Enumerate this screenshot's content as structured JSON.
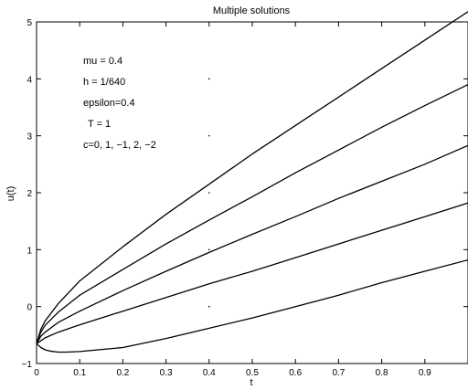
{
  "chart_data": {
    "type": "line",
    "title": "Multiple solutions",
    "xlabel": "t",
    "ylabel": "u(t)",
    "xlim": [
      0,
      1
    ],
    "ylim": [
      -1,
      5
    ],
    "xticks": [
      0,
      0.1,
      0.2,
      0.3,
      0.4,
      0.5,
      0.6,
      0.7,
      0.8,
      0.9
    ],
    "xtick_labels": [
      "0",
      "0.1",
      "0.2",
      "0.3",
      "0.4",
      "0.5",
      "0.6",
      "0.7",
      "0.8",
      "0.9"
    ],
    "yticks": [
      -1,
      0,
      1,
      2,
      3,
      4,
      5
    ],
    "ytick_labels": [
      "−1",
      "0",
      "1",
      "2",
      "3",
      "4",
      "5"
    ],
    "grid": false,
    "legend": "none",
    "line_color": "#000000",
    "annotations": [
      "mu = 0.4",
      "h = 1/640",
      "epsilon=0.4",
      "T = 1",
      "c=0, 1, −1, 2, −2"
    ],
    "marker_points": [
      {
        "x": 0.4,
        "y": 4.0
      },
      {
        "x": 0.4,
        "y": 3.0
      },
      {
        "x": 0.4,
        "y": 2.0
      },
      {
        "x": 0.4,
        "y": 1.0
      },
      {
        "x": 0.4,
        "y": 0.0
      }
    ],
    "series": [
      {
        "x": [
          0,
          0.01,
          0.02,
          0.05,
          0.1,
          0.2,
          0.3,
          0.4,
          0.5,
          0.6,
          0.7,
          0.8,
          0.9,
          1.0
        ],
        "y": [
          -0.65,
          -0.4,
          -0.25,
          0.05,
          0.45,
          1.05,
          1.62,
          2.15,
          2.68,
          3.18,
          3.68,
          4.18,
          4.68,
          5.18
        ]
      },
      {
        "x": [
          0,
          0.01,
          0.02,
          0.05,
          0.1,
          0.2,
          0.3,
          0.4,
          0.5,
          0.6,
          0.7,
          0.8,
          0.9,
          1.0
        ],
        "y": [
          -0.65,
          -0.45,
          -0.33,
          -0.1,
          0.2,
          0.65,
          1.1,
          1.52,
          1.93,
          2.35,
          2.75,
          3.15,
          3.53,
          3.9
        ]
      },
      {
        "x": [
          0,
          0.01,
          0.02,
          0.05,
          0.1,
          0.2,
          0.3,
          0.4,
          0.5,
          0.6,
          0.7,
          0.8,
          0.9,
          1.0
        ],
        "y": [
          -0.65,
          -0.52,
          -0.45,
          -0.28,
          -0.08,
          0.28,
          0.62,
          0.95,
          1.27,
          1.58,
          1.9,
          2.2,
          2.5,
          2.83
        ]
      },
      {
        "x": [
          0,
          0.01,
          0.02,
          0.05,
          0.1,
          0.2,
          0.3,
          0.4,
          0.5,
          0.6,
          0.7,
          0.8,
          0.9,
          1.0
        ],
        "y": [
          -0.65,
          -0.6,
          -0.55,
          -0.45,
          -0.32,
          -0.08,
          0.16,
          0.4,
          0.62,
          0.86,
          1.1,
          1.34,
          1.58,
          1.82
        ]
      },
      {
        "x": [
          0,
          0.01,
          0.02,
          0.03,
          0.05,
          0.07,
          0.1,
          0.2,
          0.3,
          0.4,
          0.5,
          0.6,
          0.7,
          0.8,
          0.9,
          1.0
        ],
        "y": [
          -0.65,
          -0.72,
          -0.76,
          -0.78,
          -0.8,
          -0.8,
          -0.79,
          -0.72,
          -0.56,
          -0.38,
          -0.2,
          0.0,
          0.2,
          0.42,
          0.62,
          0.82
        ]
      }
    ]
  }
}
